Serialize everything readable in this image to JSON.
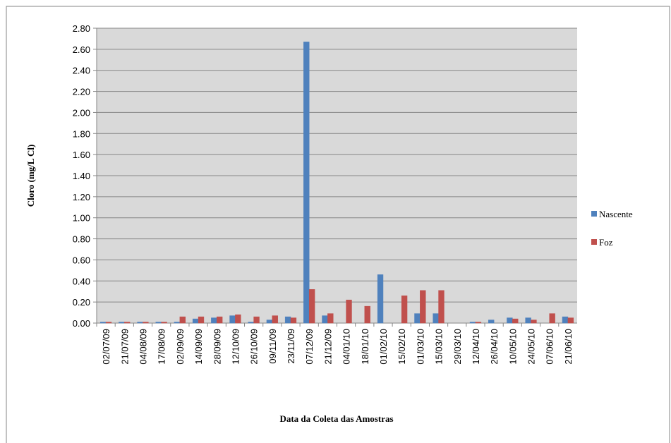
{
  "chart_data": {
    "type": "bar",
    "y_label": "Cloro (mg/L Cl)",
    "x_label": "Data da Coleta das Amostras",
    "categories": [
      "02/07/09",
      "21/07/09",
      "04/08/09",
      "17/08/09",
      "02/09/09",
      "14/09/09",
      "28/09/09",
      "12/10/09",
      "26/10/09",
      "09/11/09",
      "23/11/09",
      "07/12/09",
      "21/12/09",
      "04/01/10",
      "18/01/10",
      "01/02/10",
      "15/02/10",
      "01/03/10",
      "15/03/10",
      "29/03/10",
      "12/04/10",
      "26/04/10",
      "10/05/10",
      "24/05/10",
      "07/06/10",
      "21/06/10"
    ],
    "series": [
      {
        "name": "Nascente",
        "color": "#4f81bd",
        "values": [
          0.01,
          0.01,
          0.01,
          0.01,
          0.01,
          0.04,
          0.05,
          0.07,
          0.01,
          0.03,
          0.06,
          2.67,
          0.07,
          0,
          0,
          0.46,
          0,
          0.09,
          0.09,
          0,
          0.01,
          0.03,
          0.05,
          0.05,
          0,
          0.06
        ]
      },
      {
        "name": "Foz",
        "color": "#c0504d",
        "values": [
          0.01,
          0.01,
          0.01,
          0.01,
          0.06,
          0.06,
          0.06,
          0.08,
          0.06,
          0.07,
          0.05,
          0.32,
          0.09,
          0.22,
          0.16,
          0,
          0.26,
          0.31,
          0.31,
          0,
          0.01,
          0,
          0.04,
          0.03,
          0.09,
          0.05
        ]
      }
    ],
    "ylim": [
      0,
      2.8
    ],
    "yticks": [
      {
        "value": 0,
        "label": "0.00"
      },
      {
        "value": 0.2,
        "label": "0.20"
      },
      {
        "value": 0.4,
        "label": "0.40"
      },
      {
        "value": 0.6,
        "label": "0.60"
      },
      {
        "value": 0.8,
        "label": "0.80"
      },
      {
        "value": 1,
        "label": "1.00"
      },
      {
        "value": 1.2,
        "label": "1.20"
      },
      {
        "value": 1.4,
        "label": "1.40"
      },
      {
        "value": 1.6,
        "label": "1.60"
      },
      {
        "value": 1.8,
        "label": "1.80"
      },
      {
        "value": 2,
        "label": "2.00"
      },
      {
        "value": 2.2,
        "label": "2.20"
      },
      {
        "value": 2.4,
        "label": "2.40"
      },
      {
        "value": 2.6,
        "label": "2.60"
      },
      {
        "value": 2.8,
        "label": "2.80"
      }
    ],
    "grid": true,
    "legend": "right"
  }
}
